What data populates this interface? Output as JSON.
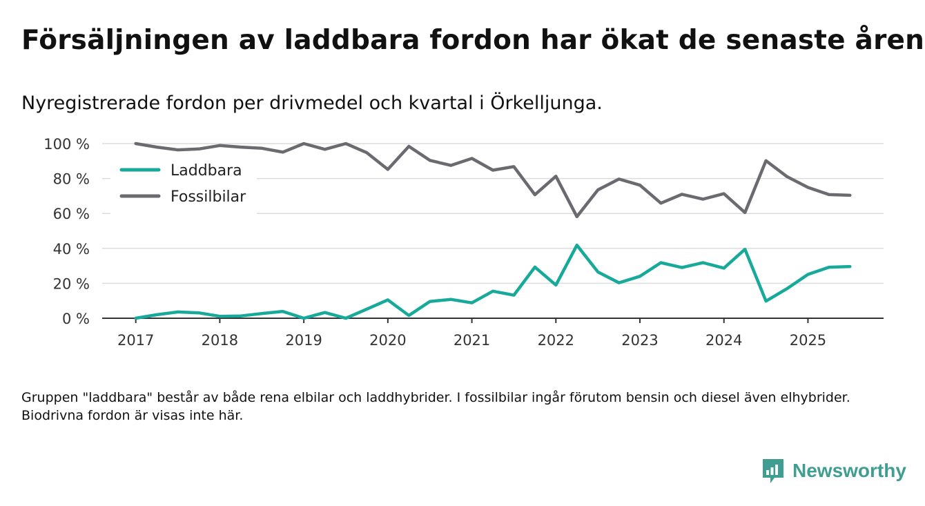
{
  "title": "Försäljningen av laddbara fordon har ökat de senaste åren",
  "subtitle": "Nyregistrerade fordon per drivmedel och kvartal i Örkelljunga.",
  "footnote": "Gruppen \"laddbara\" består av både rena elbilar och laddhybrider. I fossilbilar ingår förutom bensin och diesel även elhybrider. Biodrivna fordon är visas inte här.",
  "brand": {
    "name": "Newsworthy",
    "icon": "newsworthy-logo-icon",
    "color": "#3f9d92"
  },
  "chart_data": {
    "type": "line",
    "title": "Nyregistrerade fordon per drivmedel och kvartal i Örkelljunga.",
    "xlabel": "",
    "ylabel": "",
    "ylim": [
      0,
      100
    ],
    "xlim": [
      2016.6,
      2025.9
    ],
    "y_ticks": [
      0,
      20,
      40,
      60,
      80,
      100
    ],
    "y_tick_labels": [
      "0 %",
      "20 %",
      "40 %",
      "60 %",
      "80 %",
      "100 %"
    ],
    "x_ticks": [
      2017,
      2018,
      2019,
      2020,
      2021,
      2022,
      2023,
      2024,
      2025
    ],
    "x_tick_labels": [
      "2017",
      "2018",
      "2019",
      "2020",
      "2021",
      "2022",
      "2023",
      "2024",
      "2025"
    ],
    "grid": true,
    "legend_position": "top-left",
    "x": [
      2017.0,
      2017.25,
      2017.5,
      2017.75,
      2018.0,
      2018.25,
      2018.5,
      2018.75,
      2019.0,
      2019.25,
      2019.5,
      2019.75,
      2020.0,
      2020.25,
      2020.5,
      2020.75,
      2021.0,
      2021.25,
      2021.5,
      2021.75,
      2022.0,
      2022.25,
      2022.5,
      2022.75,
      2023.0,
      2023.25,
      2023.5,
      2023.75,
      2024.0,
      2024.25,
      2024.5,
      2024.75,
      2025.0,
      2025.25,
      2025.5
    ],
    "series": [
      {
        "name": "Laddbara",
        "color": "#17a99a",
        "values": [
          0,
          2,
          3.6,
          3.1,
          1.1,
          1.3,
          2.7,
          3.9,
          0,
          3.3,
          0,
          5.2,
          10.5,
          1.6,
          9.6,
          10.8,
          8.8,
          15.5,
          13.2,
          29.3,
          19,
          41.8,
          26.5,
          20.3,
          24,
          31.8,
          29,
          31.8,
          28.7,
          39.5,
          9.8,
          16.9,
          25.1,
          29.2,
          29.6
        ]
      },
      {
        "name": "Fossilbilar",
        "color": "#6b6a70",
        "values": [
          100,
          98,
          96.4,
          96.9,
          98.9,
          98,
          97.3,
          95.1,
          100,
          96.7,
          100,
          94.8,
          85.2,
          98.4,
          90.4,
          87.5,
          91.5,
          84.8,
          86.8,
          70.7,
          81.3,
          58.2,
          73.5,
          79.7,
          76.2,
          65.9,
          71,
          68.2,
          71.3,
          60.5,
          90.2,
          81.1,
          74.9,
          70.8,
          70.4
        ]
      }
    ]
  }
}
